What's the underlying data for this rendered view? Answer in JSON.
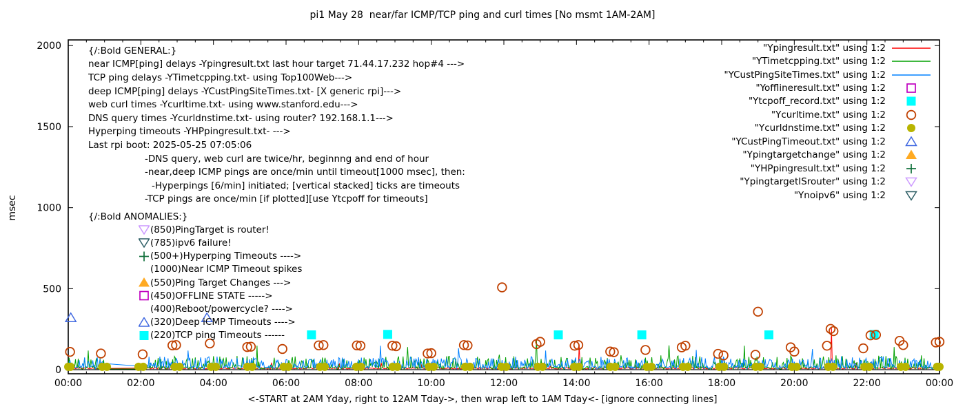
{
  "title": "pi1 May 28  near/far ICMP/TCP ping and curl times [No msmt 1AM-2AM]",
  "axes": {
    "ylabel": "msec",
    "xlabel": "<-START at 2AM Yday, right to 12AM Tday->, then wrap left to 1AM Tday<- [ignore connecting lines]"
  },
  "legend": {
    "items": [
      {
        "label": "\"Ypingresult.txt\" using 1:2",
        "marker": "line",
        "color": "#ff0000"
      },
      {
        "label": "\"YTimetcpping.txt\" using 1:2",
        "marker": "line",
        "color": "#00a000"
      },
      {
        "label": "\"YCustPingSiteTimes.txt\" using 1:2",
        "marker": "line",
        "color": "#0080ff"
      },
      {
        "label": "\"Yofflineresult.txt\" using 1:2",
        "marker": "square-open",
        "color": "#c000c0"
      },
      {
        "label": "\"Ytcpoff_record.txt\" using 1:2",
        "marker": "square-filled",
        "color": "#00ffff"
      },
      {
        "label": "\"Ycurltime.txt\" using 1:2",
        "marker": "circle-open",
        "color": "#c04000"
      },
      {
        "label": "\"Ycurldnstime.txt\" using 1:2",
        "marker": "circle-filled",
        "color": "#b8b400"
      },
      {
        "label": "\"YCustPingTimeout.txt\" using 1:2",
        "marker": "triangle-open",
        "color": "#4169e1"
      },
      {
        "label": "\"Ypingtargetchange\" using 1:2",
        "marker": "triangle-filled",
        "color": "#ffaa22"
      },
      {
        "label": "\"YHPpingresult.txt\" using 1:2",
        "marker": "plus",
        "color": "#0e6e39"
      },
      {
        "label": "\"YpingtargetISrouter\" using 1:2",
        "marker": "triangle-down-open",
        "color": "#cc99ff"
      },
      {
        "label": "\"Ynoipv6\" using 1:2",
        "marker": "triangle-down-open",
        "color": "#2e5f66"
      }
    ]
  },
  "annotations": {
    "general": [
      {
        "indent": 0,
        "text": "{/:Bold GENERAL:}"
      },
      {
        "indent": 0,
        "text": "near ICMP[ping] delays -Ypingresult.txt last hour target 71.44.17.232 hop#4 --->"
      },
      {
        "indent": 0,
        "text": "TCP ping delays -YTimetcpping.txt- using Top100Web--->"
      },
      {
        "indent": 0,
        "text": "deep ICMP[ping] delays -YCustPingSiteTimes.txt- [X generic rpi]--->"
      },
      {
        "indent": 0,
        "text": "web curl times -Ycurltime.txt- using www.stanford.edu--->"
      },
      {
        "indent": 0,
        "text": "DNS query times -Ycurldnstime.txt- using router? 192.168.1.1--->"
      },
      {
        "indent": 0,
        "text": "Hyperping timeouts -YHPpingresult.txt- --->"
      },
      {
        "indent": 0,
        "text": "Last rpi boot: 2025-05-25 07:05:06"
      },
      {
        "indent": 82,
        "text": "-DNS query, web curl are twice/hr, beginnng and end of hour"
      },
      {
        "indent": 82,
        "text": "-near,deep ICMP pings are once/min until timeout[1000 msec], then:"
      },
      {
        "indent": 92,
        "text": "-Hyperpings [6/min] initiated; [vertical stacked] ticks are timeouts"
      },
      {
        "indent": 82,
        "text": "-TCP pings are once/min [if plotted][use Ytcpoff for timeouts]"
      }
    ],
    "anomalies": {
      "header": "{/:Bold ANOMALIES:}",
      "items": [
        {
          "marker": "triangle-down-open",
          "color": "#cc99ff",
          "text": "(850)PingTarget is router!"
        },
        {
          "marker": "triangle-down-open",
          "color": "#2e5f66",
          "text": "(785)ipv6 failure!"
        },
        {
          "marker": "plus",
          "color": "#0e6e39",
          "text": "(500+)Hyperping Timeouts ---->"
        },
        {
          "marker": "none",
          "color": "#000000",
          "text": "(1000)Near ICMP Timeout spikes"
        },
        {
          "marker": "triangle-filled",
          "color": "#ffaa22",
          "text": "(550)Ping Target Changes --->"
        },
        {
          "marker": "square-open",
          "color": "#c000c0",
          "text": "(450)OFFLINE STATE ----->"
        },
        {
          "marker": "none",
          "color": "#000000",
          "text": "(400)Reboot/powercycle? ---->"
        },
        {
          "marker": "triangle-open",
          "color": "#4169e1",
          "text": "(320)Deep iCMP Timeouts ---->"
        },
        {
          "marker": "square-filled",
          "color": "#00ffff",
          "text": "(220)TCP ping Timeouts ------"
        }
      ]
    }
  },
  "chart_data": {
    "type": "line",
    "title": "pi1 May 28  near/far ICMP/TCP ping and curl times [No msmt 1AM-2AM]",
    "xlabel": "<-START at 2AM Yday, right to 12AM Tday->, then wrap left to 1AM Tday<- [ignore connecting lines]",
    "ylabel": "msec",
    "xlim_hours": [
      0,
      24
    ],
    "ylim": [
      -25,
      2035
    ],
    "grid": false,
    "legend_position": "top-right",
    "no_measurement_gap_hours": [
      1,
      2
    ],
    "xticks": [
      {
        "h": 0,
        "label": "00:00"
      },
      {
        "h": 2,
        "label": "02:00"
      },
      {
        "h": 4,
        "label": "04:00"
      },
      {
        "h": 6,
        "label": "06:00"
      },
      {
        "h": 8,
        "label": "08:00"
      },
      {
        "h": 10,
        "label": "10:00"
      },
      {
        "h": 12,
        "label": "12:00"
      },
      {
        "h": 14,
        "label": "14:00"
      },
      {
        "h": 16,
        "label": "16:00"
      },
      {
        "h": 18,
        "label": "18:00"
      },
      {
        "h": 20,
        "label": "20:00"
      },
      {
        "h": 22,
        "label": "22:00"
      },
      {
        "h": 24,
        "label": "00:00"
      }
    ],
    "xtick_minor_step": 0.5,
    "yticks": [
      {
        "v": 0,
        "label": "0"
      },
      {
        "v": 500,
        "label": "500"
      },
      {
        "v": 1000,
        "label": "1000"
      },
      {
        "v": 1500,
        "label": "1500"
      },
      {
        "v": 2000,
        "label": "2000"
      }
    ],
    "line_series": [
      {
        "name": "Ypingresult.txt",
        "color": "#ff0000",
        "seed": 11,
        "base": 5,
        "jitter": 8,
        "density": 0.02,
        "noise": 40,
        "spikes": [
          [
            14.07,
            155
          ],
          [
            21.02,
            262
          ]
        ]
      },
      {
        "name": "YTimetcpping.txt",
        "color": "#00a000",
        "seed": 22,
        "base": 4,
        "jitter": 14,
        "density": 0.4,
        "noise": 75,
        "spikes": [
          [
            0.55,
            118
          ],
          [
            5.2,
            148
          ],
          [
            9.35,
            140
          ],
          [
            12.9,
            182
          ],
          [
            16.55,
            150
          ],
          [
            18.62,
            148
          ],
          [
            22.75,
            140
          ]
        ]
      },
      {
        "name": "YCustPingSiteTimes.txt",
        "color": "#0080ff",
        "seed": 33,
        "base": 6,
        "jitter": 18,
        "density": 0.5,
        "noise": 60,
        "spikes": [
          [
            3.3,
            118
          ],
          [
            8.6,
            148
          ],
          [
            10.75,
            132
          ],
          [
            13.15,
            118
          ],
          [
            17.3,
            122
          ],
          [
            20.5,
            128
          ]
        ]
      }
    ],
    "scatter_series": [
      {
        "name": "Yofflineresult.txt",
        "marker": "square-open",
        "color": "#c000c0",
        "points": []
      },
      {
        "name": "Ytcpoff_record.txt",
        "marker": "square-filled",
        "color": "#00ffff",
        "points": [
          [
            6.7,
            215
          ],
          [
            8.8,
            218
          ],
          [
            13.5,
            215
          ],
          [
            15.8,
            215
          ],
          [
            19.3,
            215
          ],
          [
            22.2,
            218
          ]
        ]
      },
      {
        "name": "Ycurltime.txt",
        "marker": "circle-open",
        "color": "#c04000",
        "points": [
          [
            0.05,
            110
          ],
          [
            0.9,
            100
          ],
          [
            2.05,
            95
          ],
          [
            2.87,
            150
          ],
          [
            2.97,
            152
          ],
          [
            3.9,
            162
          ],
          [
            4.93,
            140
          ],
          [
            5.03,
            142
          ],
          [
            5.9,
            128
          ],
          [
            6.9,
            150
          ],
          [
            7.03,
            152
          ],
          [
            7.95,
            150
          ],
          [
            8.05,
            148
          ],
          [
            8.93,
            148
          ],
          [
            9.03,
            145
          ],
          [
            9.9,
            100
          ],
          [
            10.0,
            102
          ],
          [
            10.9,
            152
          ],
          [
            11.0,
            150
          ],
          [
            11.95,
            508
          ],
          [
            12.9,
            158
          ],
          [
            13.0,
            172
          ],
          [
            13.95,
            148
          ],
          [
            14.05,
            152
          ],
          [
            14.93,
            112
          ],
          [
            15.03,
            108
          ],
          [
            15.9,
            122
          ],
          [
            16.9,
            138
          ],
          [
            17.0,
            148
          ],
          [
            17.9,
            98
          ],
          [
            18.05,
            88
          ],
          [
            18.93,
            92
          ],
          [
            19.0,
            358
          ],
          [
            19.9,
            138
          ],
          [
            20.0,
            112
          ],
          [
            20.9,
            148
          ],
          [
            21.0,
            252
          ],
          [
            21.08,
            238
          ],
          [
            21.9,
            132
          ],
          [
            22.1,
            212
          ],
          [
            22.25,
            215
          ],
          [
            22.9,
            178
          ],
          [
            23.0,
            152
          ],
          [
            23.9,
            168
          ],
          [
            24.0,
            172
          ]
        ]
      },
      {
        "name": "Ycurldnstime.txt",
        "marker": "circle-filled",
        "color": "#b8b400",
        "hourly": {
          "hours": [
            0,
            1,
            2,
            3,
            4,
            5,
            6,
            7,
            8,
            9,
            10,
            11,
            12,
            13,
            14,
            15,
            16,
            17,
            18,
            19,
            20,
            21,
            22,
            23,
            24
          ],
          "value": 18,
          "pair_offset": 0.065
        }
      },
      {
        "name": "YCustPingTimeout.txt",
        "marker": "triangle-open",
        "color": "#4169e1",
        "points": [
          [
            0.07,
            320
          ],
          [
            3.82,
            320
          ]
        ]
      },
      {
        "name": "Ypingtargetchange",
        "marker": "triangle-filled",
        "color": "#ffaa22",
        "points": []
      },
      {
        "name": "YHPpingresult.txt",
        "marker": "plus",
        "color": "#0e6e39",
        "points": []
      },
      {
        "name": "YpingtargetISrouter",
        "marker": "triangle-down-open",
        "color": "#cc99ff",
        "points": []
      },
      {
        "name": "Ynoipv6",
        "marker": "triangle-down-open",
        "color": "#2e5f66",
        "points": []
      }
    ]
  }
}
